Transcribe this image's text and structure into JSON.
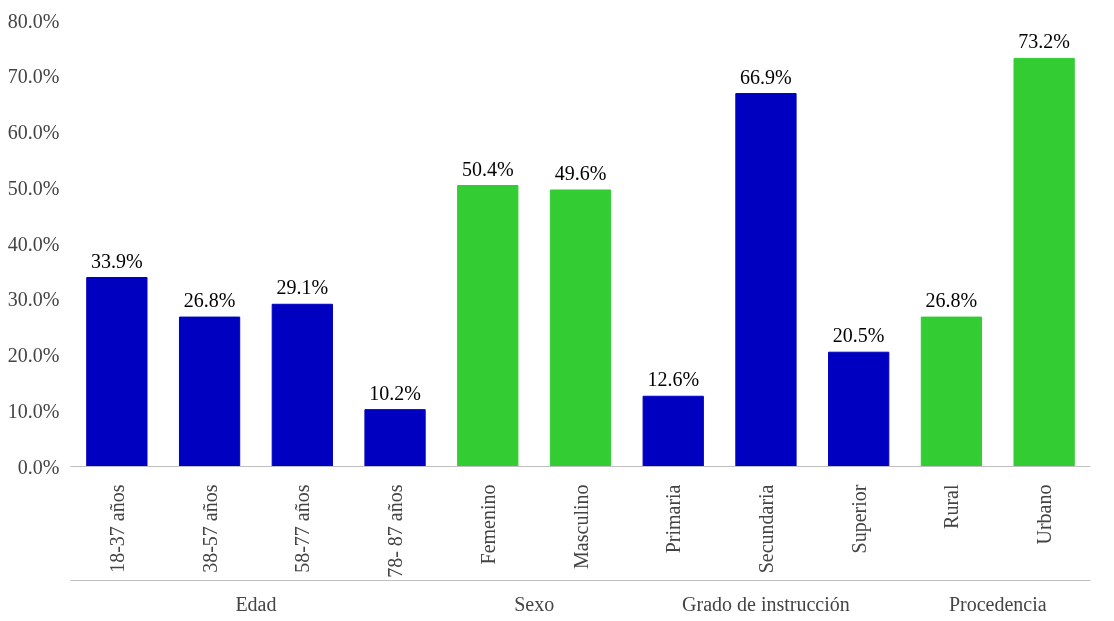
{
  "chart_data": {
    "type": "bar",
    "categories": [
      "18-37 años",
      "38-57 años",
      "58-77 años",
      "78- 87 años",
      "Femenino",
      "Masculino",
      "Primaria",
      "Secundaria",
      "Superior",
      "Rural",
      "Urbano"
    ],
    "values": [
      33.9,
      26.8,
      29.1,
      10.2,
      50.4,
      49.6,
      12.6,
      66.9,
      20.5,
      26.8,
      73.2
    ],
    "colors": [
      "#0000c0",
      "#0000c0",
      "#0000c0",
      "#0000c0",
      "#33cc33",
      "#33cc33",
      "#0000c0",
      "#0000c0",
      "#0000c0",
      "#33cc33",
      "#33cc33"
    ],
    "value_labels": [
      "33.9%",
      "26.8%",
      "29.1%",
      "10.2%",
      "50.4%",
      "49.6%",
      "12.6%",
      "66.9%",
      "20.5%",
      "26.8%",
      "73.2%"
    ],
    "annotations": [
      "Edad",
      "Sexo",
      "Grado de instrucción",
      "Procedencia"
    ],
    "ylim": [
      0,
      80
    ],
    "yticks": [
      {
        "value": 0,
        "label": "0.0%"
      },
      {
        "value": 10,
        "label": "10.0%"
      },
      {
        "value": 20,
        "label": "20.0%"
      },
      {
        "value": 30,
        "label": "30.0%"
      },
      {
        "value": 40,
        "label": "40.0%"
      },
      {
        "value": 50,
        "label": "50.0%"
      },
      {
        "value": 60,
        "label": "60.0%"
      },
      {
        "value": 70,
        "label": "70.0%"
      },
      {
        "value": 80,
        "label": "80.0%"
      }
    ],
    "grid": false
  }
}
